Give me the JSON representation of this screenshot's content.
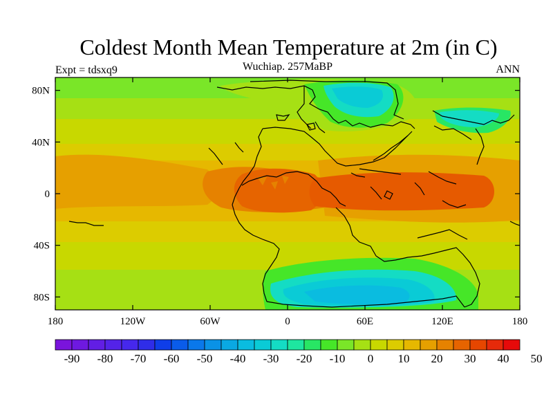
{
  "title": "Coldest Month Mean Temperature at 2m (in C)",
  "subtitle": "Wuchiap. 257MaBP",
  "left_label": "Expt = tdsxq9",
  "right_label": "ANN",
  "map": {
    "projection": "equirectangular",
    "lon_range": [
      -180,
      180
    ],
    "lat_range": [
      -90,
      90
    ],
    "lon_ticks": [
      {
        "value": -180,
        "label": "180"
      },
      {
        "value": -120,
        "label": "120W"
      },
      {
        "value": -60,
        "label": "60W"
      },
      {
        "value": 0,
        "label": "0"
      },
      {
        "value": 60,
        "label": "60E"
      },
      {
        "value": 120,
        "label": "120E"
      },
      {
        "value": 180,
        "label": "180"
      }
    ],
    "lat_ticks": [
      {
        "value": 80,
        "label": "80N"
      },
      {
        "value": 40,
        "label": "40N"
      },
      {
        "value": 0,
        "label": "0"
      },
      {
        "value": -40,
        "label": "40S"
      },
      {
        "value": -80,
        "label": "80S"
      }
    ]
  },
  "colorbar": {
    "min": -95,
    "step": 5,
    "colors": [
      "#7a14dc",
      "#6e19e0",
      "#621ee4",
      "#5423e8",
      "#4628ec",
      "#2f2de8",
      "#0f3ee8",
      "#0a5cea",
      "#0a78ea",
      "#0a92e6",
      "#0aa8e2",
      "#0abce0",
      "#0acbd6",
      "#14dcc4",
      "#1ee6a0",
      "#28e664",
      "#46e628",
      "#7ae628",
      "#a6e014",
      "#c8d800",
      "#dccc00",
      "#e6b800",
      "#e6a000",
      "#e68200",
      "#e66400",
      "#e64600",
      "#e62a0a",
      "#e60a0a"
    ],
    "labels": [
      -90,
      -80,
      -70,
      -60,
      -50,
      -40,
      -30,
      -20,
      -10,
      0,
      10,
      20,
      30,
      40,
      50
    ]
  },
  "colors": {
    "frame": "#000000",
    "coast": "#000000",
    "background": "#ffffff"
  }
}
